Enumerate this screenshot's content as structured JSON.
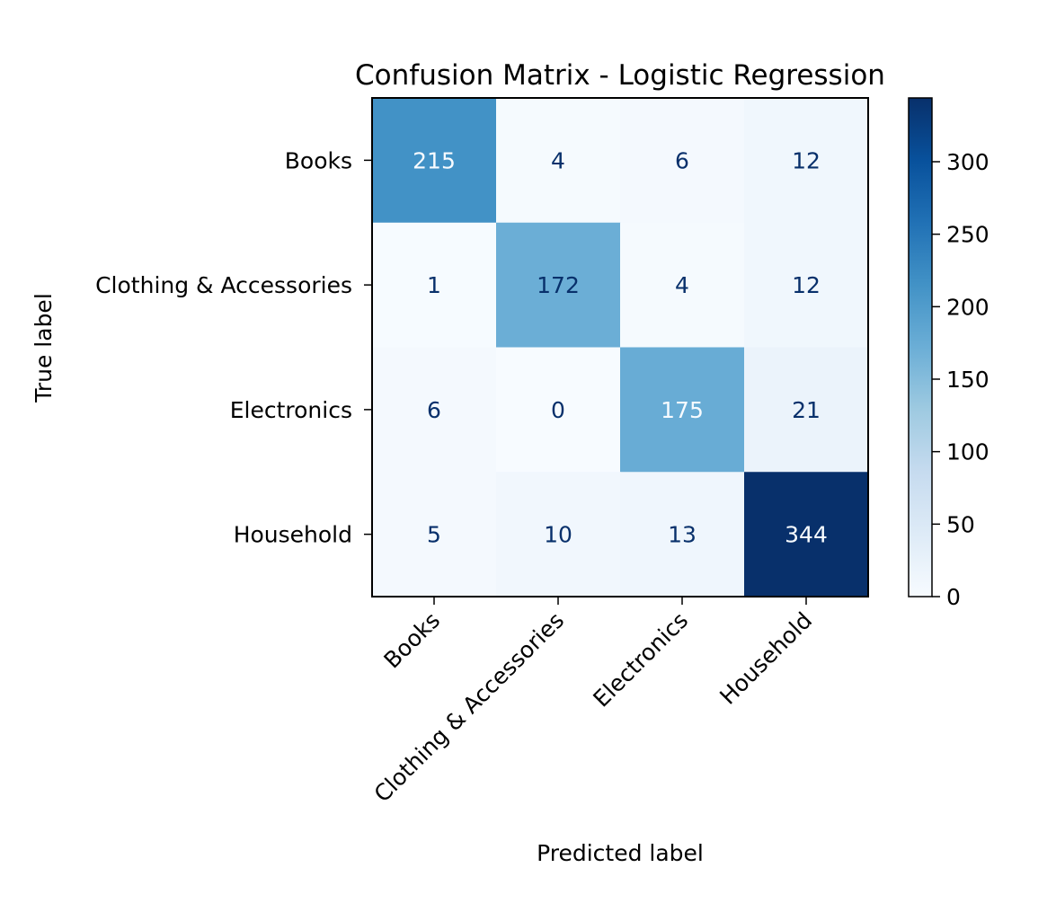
{
  "chart_data": {
    "type": "heatmap",
    "title": "Confusion Matrix - Logistic Regression",
    "xlabel": "Predicted label",
    "ylabel": "True label",
    "x_categories": [
      "Books",
      "Clothing & Accessories",
      "Electronics",
      "Household"
    ],
    "y_categories": [
      "Books",
      "Clothing & Accessories",
      "Electronics",
      "Household"
    ],
    "values": [
      [
        215,
        4,
        6,
        12
      ],
      [
        1,
        172,
        4,
        12
      ],
      [
        6,
        0,
        175,
        21
      ],
      [
        5,
        10,
        13,
        344
      ]
    ],
    "colormap": "Blues",
    "colorbar": {
      "range": [
        0,
        344
      ],
      "ticks": [
        0,
        50,
        100,
        150,
        200,
        250,
        300
      ]
    },
    "x_tick_rotation_deg": 45,
    "grid": false
  }
}
